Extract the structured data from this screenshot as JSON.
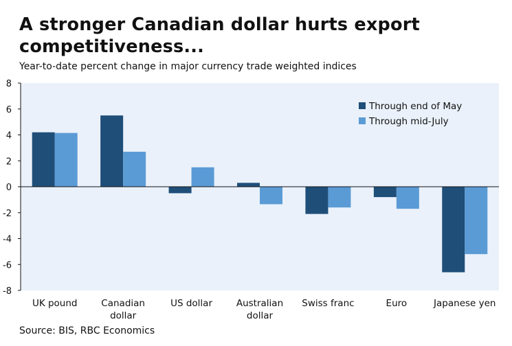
{
  "title_line1": "A stronger Canadian dollar hurts export",
  "title_line2": "competitiveness...",
  "subtitle": "Year-to-date percent change in major currency trade weighted indices",
  "source": "Source: BIS, RBC Economics",
  "colors": {
    "series1": "#1f4e79",
    "series2": "#5b9bd5",
    "plot_bg": "#eaf1fa",
    "axis": "#111111"
  },
  "chart_data": {
    "type": "bar",
    "title": "A stronger Canadian dollar hurts export competitiveness...",
    "subtitle": "Year-to-date percent change in major currency trade weighted indices",
    "xlabel": "",
    "ylabel": "",
    "ylim": [
      -8,
      8
    ],
    "yticks": [
      8,
      6,
      4,
      2,
      0,
      -2,
      -4,
      -6,
      -8
    ],
    "grid": false,
    "legend_position": "top-right",
    "categories": [
      [
        "UK pound"
      ],
      [
        "Canadian",
        "dollar"
      ],
      [
        "US dollar"
      ],
      [
        "Australian",
        "dollar"
      ],
      [
        "Swiss franc"
      ],
      [
        "Euro"
      ],
      [
        "Japanese yen"
      ]
    ],
    "series": [
      {
        "name": "Through end of May",
        "values": [
          4.2,
          5.5,
          -0.5,
          0.3,
          -2.1,
          -0.8,
          -6.6
        ]
      },
      {
        "name": "Through mid-July",
        "values": [
          4.15,
          2.7,
          1.5,
          -1.35,
          -1.6,
          -1.7,
          -5.2
        ]
      }
    ]
  }
}
